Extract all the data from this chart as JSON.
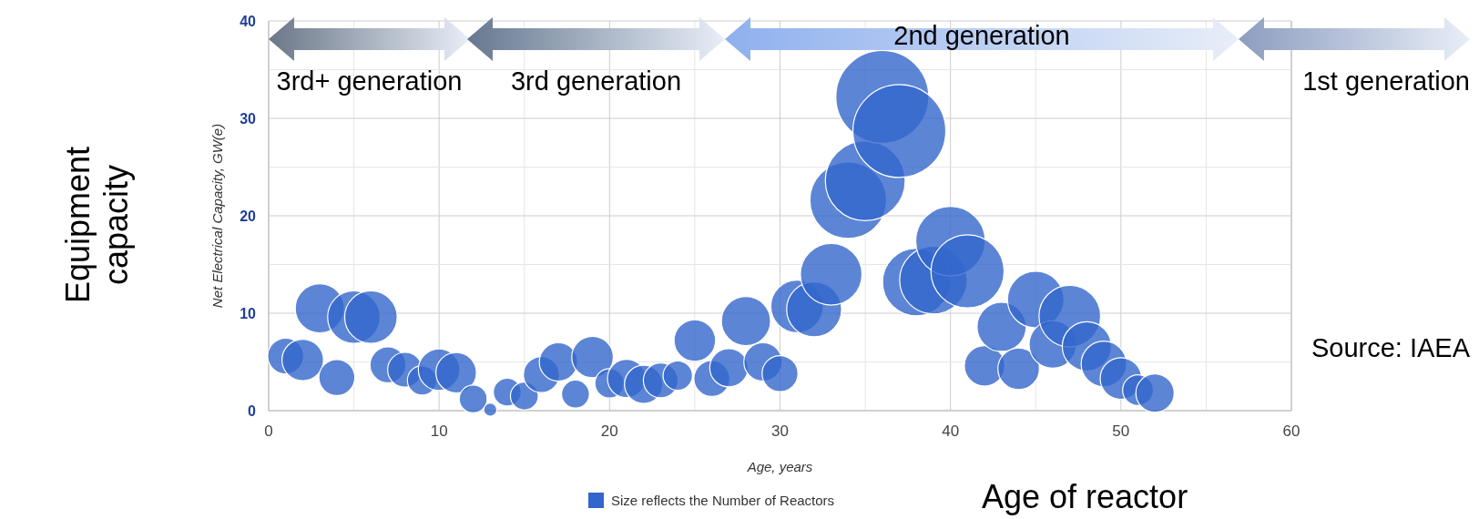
{
  "chart_data": {
    "type": "bubble",
    "xlabel": "Age, years",
    "ylabel": "Net Electrical Capacity, GW(e)",
    "x": [
      1,
      2,
      3,
      4,
      5,
      6,
      7,
      8,
      9,
      10,
      11,
      12,
      13,
      14,
      15,
      16,
      17,
      18,
      19,
      20,
      21,
      22,
      23,
      24,
      25,
      26,
      27,
      28,
      29,
      30,
      31,
      32,
      33,
      34,
      35,
      36,
      37,
      38,
      39,
      40,
      41,
      42,
      43,
      44,
      45,
      46,
      47,
      48,
      49,
      50,
      51,
      52
    ],
    "series": [
      {
        "name": "Size reflects the Number of Reactors",
        "color": "#3366cc",
        "values": [
          5.6,
          5.2,
          10.5,
          3.4,
          9.6,
          9.6,
          4.7,
          4.2,
          3.1,
          4.2,
          3.9,
          1.2,
          0.1,
          1.9,
          1.5,
          3.7,
          5.0,
          1.7,
          5.5,
          2.8,
          3.3,
          2.7,
          3.1,
          3.6,
          7.2,
          3.3,
          4.4,
          9.2,
          5.0,
          3.8,
          10.7,
          10.4,
          14.0,
          21.6,
          23.6,
          32.2,
          28.7,
          13.2,
          13.4,
          17.4,
          14.3,
          4.6,
          8.6,
          4.3,
          11.4,
          6.8,
          9.7,
          6.6,
          4.8,
          3.3,
          2.1,
          1.8
        ],
        "sizes": [
          0.15,
          0.2,
          0.28,
          0.15,
          0.32,
          0.32,
          0.15,
          0.14,
          0.1,
          0.2,
          0.19,
          0.09,
          0.02,
          0.09,
          0.09,
          0.15,
          0.17,
          0.09,
          0.2,
          0.1,
          0.17,
          0.17,
          0.14,
          0.1,
          0.2,
          0.15,
          0.17,
          0.28,
          0.17,
          0.15,
          0.32,
          0.35,
          0.44,
          0.68,
          0.74,
          1,
          1,
          0.53,
          0.53,
          0.56,
          0.62,
          0.19,
          0.28,
          0.2,
          0.37,
          0.26,
          0.44,
          0.28,
          0.24,
          0.2,
          0.11,
          0.17
        ]
      }
    ],
    "xlim": [
      0,
      60
    ],
    "xticks": [
      0,
      10,
      20,
      30,
      40,
      50,
      60
    ],
    "ylim": [
      0,
      40
    ],
    "yticks": [
      0,
      10,
      20,
      30,
      40
    ],
    "grid": true,
    "legend": "bottom",
    "annotations": [
      "Equipment capacity",
      "Age of reactor",
      "Source: IAEA",
      "3rd+ generation",
      "3rd generation",
      "2nd generation",
      "1st generation"
    ]
  }
}
